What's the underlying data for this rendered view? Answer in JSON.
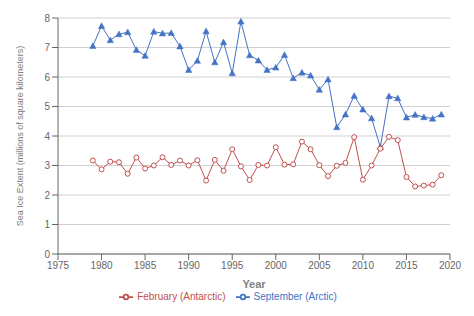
{
  "chart_data": {
    "type": "line",
    "xlabel": "Year",
    "ylabel": "Sea Ice Extent (millions of square kilometers)",
    "x": [
      1979,
      1980,
      1981,
      1982,
      1983,
      1984,
      1985,
      1986,
      1987,
      1988,
      1989,
      1990,
      1991,
      1992,
      1993,
      1994,
      1995,
      1996,
      1997,
      1998,
      1999,
      2000,
      2001,
      2002,
      2003,
      2004,
      2005,
      2006,
      2007,
      2008,
      2009,
      2010,
      2011,
      2012,
      2013,
      2014,
      2015,
      2016,
      2017,
      2018,
      2019
    ],
    "series": [
      {
        "name": "September (Arctic)",
        "color": "#4472C4",
        "marker": "triangle",
        "values": [
          7.05,
          7.73,
          7.25,
          7.45,
          7.52,
          6.92,
          6.72,
          7.54,
          7.48,
          7.49,
          7.04,
          6.24,
          6.55,
          7.55,
          6.5,
          7.18,
          6.13,
          7.88,
          6.74,
          6.56,
          6.24,
          6.32,
          6.75,
          5.96,
          6.15,
          6.05,
          5.57,
          5.92,
          4.3,
          4.73,
          5.36,
          4.9,
          4.6,
          3.63,
          5.35,
          5.28,
          4.63,
          4.72,
          4.64,
          4.59,
          4.73
        ]
      },
      {
        "name": "February (Antarctic)",
        "color": "#C0504D",
        "marker": "circle",
        "values": [
          3.17,
          2.87,
          3.13,
          3.11,
          2.72,
          3.27,
          2.9,
          3.0,
          3.28,
          3.02,
          3.17,
          3.0,
          3.18,
          2.49,
          3.19,
          2.82,
          3.55,
          2.97,
          2.51,
          3.02,
          3.0,
          3.62,
          3.03,
          3.04,
          3.81,
          3.55,
          3.01,
          2.64,
          2.99,
          3.09,
          3.96,
          2.52,
          3.0,
          3.57,
          3.97,
          3.86,
          2.61,
          2.29,
          2.32,
          2.35,
          2.67
        ]
      }
    ],
    "xlim": [
      1975,
      2020
    ],
    "ylim": [
      0,
      8
    ],
    "xticks": [
      1975,
      1980,
      1985,
      1990,
      1995,
      2000,
      2005,
      2010,
      2015,
      2020
    ],
    "yticks": [
      0,
      1,
      2,
      3,
      4,
      5,
      6,
      7,
      8
    ],
    "grid": true,
    "legend": "bottom"
  }
}
